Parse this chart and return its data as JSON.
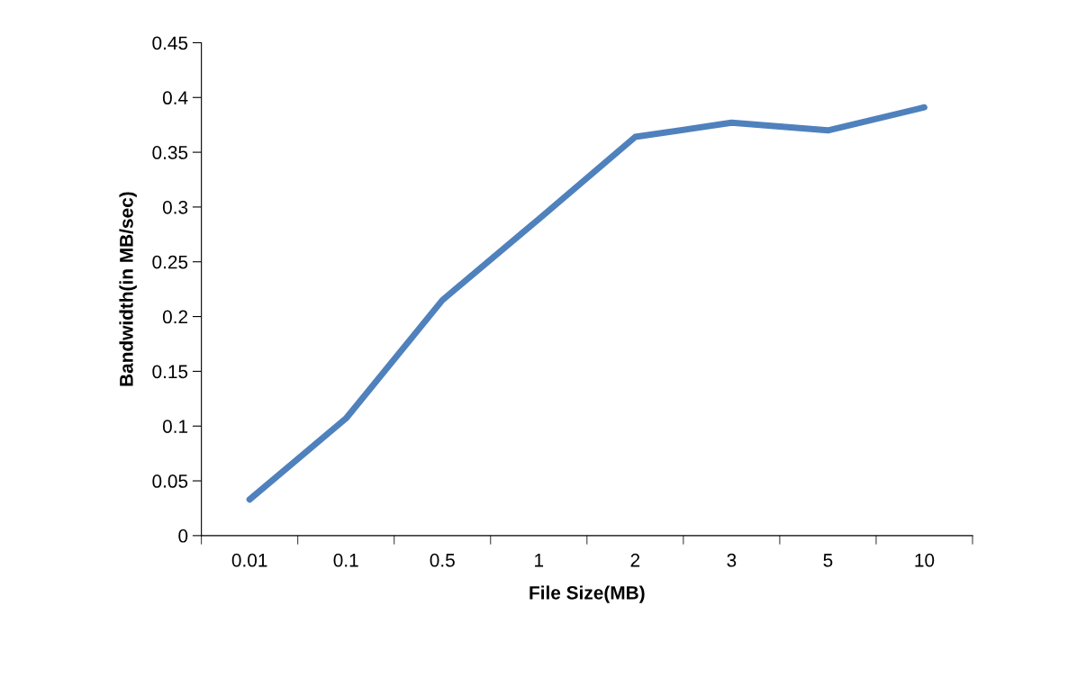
{
  "chart_data": {
    "type": "line",
    "xlabel": "File Size(MB)",
    "ylabel": "Bandwidth(in MB/sec)",
    "categories": [
      "0.01",
      "0.1",
      "0.5",
      "1",
      "2",
      "3",
      "5",
      "10"
    ],
    "series": [
      {
        "color": "#4f81bd",
        "values": [
          0.033,
          0.107,
          0.215,
          0.289,
          0.364,
          0.377,
          0.37,
          0.391
        ]
      }
    ],
    "ylim": [
      0,
      0.45
    ],
    "yticks": [
      0,
      0.05,
      0.1,
      0.15,
      0.2,
      0.25,
      0.3,
      0.35,
      0.4,
      0.45
    ],
    "grid": false,
    "legend": false,
    "marker": "none",
    "line_style": "solid"
  }
}
